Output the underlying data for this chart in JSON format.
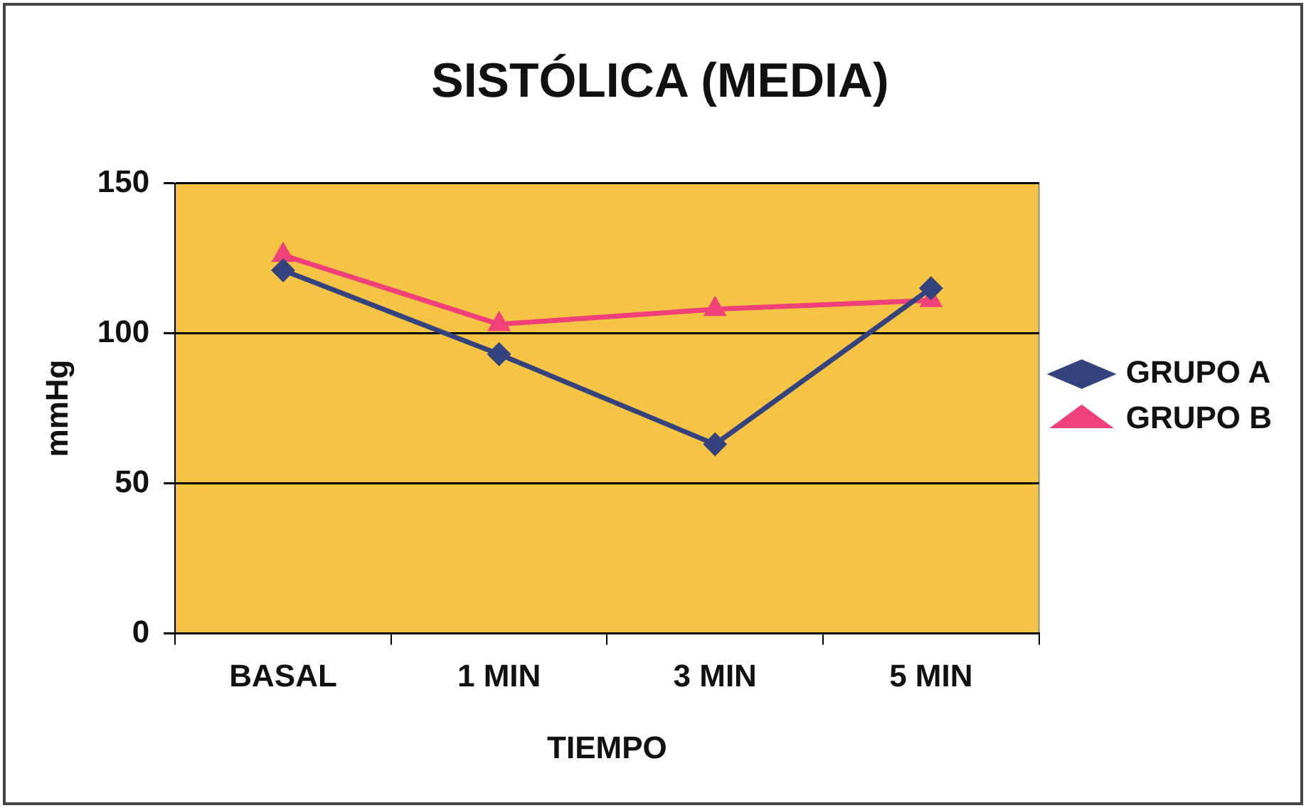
{
  "chart_data": {
    "type": "line",
    "title": "SISTÓLICA (MEDIA)",
    "xlabel": "TIEMPO",
    "ylabel": "mmHg",
    "categories": [
      "BASAL",
      "1 MIN",
      "3 MIN",
      "5 MIN"
    ],
    "series": [
      {
        "name": "GRUPO A",
        "color": "#34427e",
        "marker": "diamond",
        "values": [
          121,
          93,
          63,
          115
        ]
      },
      {
        "name": "GRUPO B",
        "color": "#f0407a",
        "marker": "triangle",
        "values": [
          126,
          103,
          108,
          111
        ]
      }
    ],
    "ylim": [
      0,
      150
    ],
    "yticks": [
      0,
      50,
      100,
      150
    ],
    "grid": "y",
    "legend": "right",
    "line_style": "solid"
  }
}
